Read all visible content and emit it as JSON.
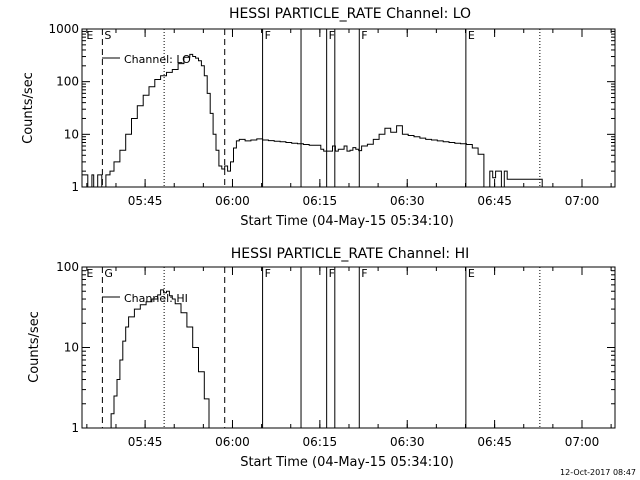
{
  "footer": {
    "timestamp": "12-Oct-2017 08:47"
  },
  "chart_data": [
    {
      "type": "line",
      "title": "HESSI PARTICLE_RATE Channel: LO",
      "xlabel": "Start Time (04-May-15 05:34:10)",
      "ylabel": "Counts/sec",
      "yscale": "log",
      "ylim": [
        1,
        1000
      ],
      "xlim_minutes": [
        0,
        91.5
      ],
      "y_ticks": [
        {
          "v": 1,
          "label": "1"
        },
        {
          "v": 10,
          "label": "10"
        },
        {
          "v": 100,
          "label": "100"
        },
        {
          "v": 1000,
          "label": "1000"
        }
      ],
      "x_ticks": [
        {
          "m": 10.833,
          "label": "05:45"
        },
        {
          "m": 25.833,
          "label": "06:00"
        },
        {
          "m": 40.833,
          "label": "06:15"
        },
        {
          "m": 55.833,
          "label": "06:30"
        },
        {
          "m": 70.833,
          "label": "06:45"
        },
        {
          "m": 85.833,
          "label": "07:00"
        }
      ],
      "legend": "Channel: LO",
      "flags": [
        {
          "m": 0.4,
          "label": "E",
          "style": "none"
        },
        {
          "m": 3.5,
          "label": "S",
          "style": "dashed"
        },
        {
          "m": 14.1,
          "label": "",
          "style": "dotted"
        },
        {
          "m": 24.5,
          "label": "",
          "style": "dashed"
        },
        {
          "m": 31.0,
          "label": "F",
          "style": "solid"
        },
        {
          "m": 37.6,
          "label": "",
          "style": "solid"
        },
        {
          "m": 42.0,
          "label": "F",
          "style": "solid"
        },
        {
          "m": 43.4,
          "label": "",
          "style": "solid"
        },
        {
          "m": 47.6,
          "label": "F",
          "style": "solid"
        },
        {
          "m": 65.9,
          "label": "E",
          "style": "solid"
        },
        {
          "m": 78.6,
          "label": "",
          "style": "dotted"
        }
      ],
      "series": [
        {
          "values": [
            [
              0,
              1.7
            ],
            [
              0.7,
              1.7
            ],
            [
              1.0,
              1.0
            ],
            [
              1.7,
              1.7
            ],
            [
              2.0,
              1.0
            ],
            [
              2.7,
              1.7
            ],
            [
              3.4,
              1.0
            ],
            [
              4.1,
              1.7
            ],
            [
              4.8,
              2.0
            ],
            [
              5.5,
              3.0
            ],
            [
              6.5,
              5.0
            ],
            [
              7.5,
              10.0
            ],
            [
              8.5,
              20.0
            ],
            [
              9.5,
              35.0
            ],
            [
              10.5,
              55.0
            ],
            [
              11.5,
              80.0
            ],
            [
              12.5,
              110.0
            ],
            [
              13.5,
              130.0
            ],
            [
              14.5,
              150.0
            ],
            [
              15.5,
              170.0
            ],
            [
              16.5,
              220.0
            ],
            [
              17.5,
              290.0
            ],
            [
              18.5,
              330.0
            ],
            [
              19.0,
              300.0
            ],
            [
              19.5,
              280.0
            ],
            [
              20.0,
              250.0
            ],
            [
              20.5,
              200.0
            ],
            [
              21.0,
              130.0
            ],
            [
              21.5,
              60.0
            ],
            [
              22.0,
              25.0
            ],
            [
              22.5,
              10.0
            ],
            [
              23.0,
              5.0
            ],
            [
              23.5,
              2.5
            ],
            [
              24.0,
              2.2
            ],
            [
              24.5,
              2.5
            ],
            [
              25.0,
              2.0
            ],
            [
              25.5,
              3.0
            ],
            [
              26.0,
              5.5
            ],
            [
              26.5,
              7.5
            ],
            [
              27.0,
              8.0
            ],
            [
              28.0,
              7.5
            ],
            [
              29.0,
              7.8
            ],
            [
              30.0,
              8.2
            ],
            [
              31.0,
              7.8
            ],
            [
              32.0,
              7.6
            ],
            [
              33.0,
              7.4
            ],
            [
              34.0,
              7.2
            ],
            [
              35.0,
              7.0
            ],
            [
              36.0,
              6.8
            ],
            [
              37.0,
              6.6
            ],
            [
              38.0,
              6.4
            ],
            [
              39.0,
              6.2
            ],
            [
              40.0,
              6.2
            ],
            [
              41.0,
              5.2
            ],
            [
              41.5,
              4.8
            ],
            [
              42.0,
              4.8
            ],
            [
              43.0,
              6.0
            ],
            [
              43.5,
              4.8
            ],
            [
              44.0,
              5.2
            ],
            [
              45.0,
              6.0
            ],
            [
              45.5,
              4.8
            ],
            [
              46.0,
              5.0
            ],
            [
              46.5,
              5.6
            ],
            [
              47.0,
              5.2
            ],
            [
              47.5,
              4.9
            ],
            [
              48.0,
              6.0
            ],
            [
              49.0,
              6.5
            ],
            [
              50.0,
              8.0
            ],
            [
              51.0,
              10.0
            ],
            [
              52.0,
              13.0
            ],
            [
              53.0,
              11.0
            ],
            [
              54.0,
              14.5
            ],
            [
              55.0,
              10.0
            ],
            [
              56.0,
              9.5
            ],
            [
              57.0,
              9.0
            ],
            [
              58.0,
              8.5
            ],
            [
              59.0,
              8.0
            ],
            [
              60.0,
              7.8
            ],
            [
              61.0,
              7.5
            ],
            [
              62.0,
              7.2
            ],
            [
              63.0,
              7.0
            ],
            [
              64.0,
              6.8
            ],
            [
              65.0,
              6.6
            ],
            [
              66.0,
              6.4
            ],
            [
              66.5,
              6.4
            ],
            [
              67.0,
              5.5
            ],
            [
              68.0,
              4.2
            ],
            [
              68.5,
              4.2
            ],
            [
              69.0,
              1.0
            ],
            [
              70.0,
              2.0
            ],
            [
              70.5,
              1.5
            ],
            [
              71.0,
              2.0
            ],
            [
              72.0,
              1.0
            ],
            [
              72.5,
              2.0
            ],
            [
              73.0,
              1.4
            ],
            [
              74.0,
              1.4
            ],
            [
              75.0,
              1.4
            ],
            [
              77.5,
              1.4
            ],
            [
              78.5,
              1.4
            ],
            [
              79.0,
              1.0
            ]
          ]
        }
      ]
    },
    {
      "type": "line",
      "title": "HESSI PARTICLE_RATE Channel: HI",
      "xlabel": "Start Time (04-May-15 05:34:10)",
      "ylabel": "Counts/sec",
      "yscale": "log",
      "ylim": [
        1,
        100
      ],
      "xlim_minutes": [
        0,
        91.5
      ],
      "y_ticks": [
        {
          "v": 1,
          "label": "1"
        },
        {
          "v": 10,
          "label": "10"
        },
        {
          "v": 100,
          "label": "100"
        }
      ],
      "x_ticks": [
        {
          "m": 10.833,
          "label": "05:45"
        },
        {
          "m": 25.833,
          "label": "06:00"
        },
        {
          "m": 40.833,
          "label": "06:15"
        },
        {
          "m": 55.833,
          "label": "06:30"
        },
        {
          "m": 70.833,
          "label": "06:45"
        },
        {
          "m": 85.833,
          "label": "07:00"
        }
      ],
      "legend": "Channel: HI",
      "flags": [
        {
          "m": 0.4,
          "label": "E",
          "style": "none"
        },
        {
          "m": 3.5,
          "label": "G",
          "style": "dashed"
        },
        {
          "m": 14.1,
          "label": "",
          "style": "dotted"
        },
        {
          "m": 24.5,
          "label": "",
          "style": "dashed"
        },
        {
          "m": 31.0,
          "label": "F",
          "style": "solid"
        },
        {
          "m": 37.6,
          "label": "",
          "style": "solid"
        },
        {
          "m": 42.0,
          "label": "F",
          "style": "solid"
        },
        {
          "m": 43.4,
          "label": "",
          "style": "solid"
        },
        {
          "m": 47.6,
          "label": "F",
          "style": "solid"
        },
        {
          "m": 65.9,
          "label": "E",
          "style": "solid"
        },
        {
          "m": 78.6,
          "label": "",
          "style": "dotted"
        }
      ],
      "series": [
        {
          "values": [
            [
              4.4,
              1.0
            ],
            [
              5.0,
              1.5
            ],
            [
              5.5,
              2.5
            ],
            [
              6.0,
              4.0
            ],
            [
              6.5,
              7.0
            ],
            [
              7.0,
              12.0
            ],
            [
              7.5,
              18.0
            ],
            [
              8.0,
              24.0
            ],
            [
              9.0,
              30.0
            ],
            [
              10.0,
              34.0
            ],
            [
              11.0,
              37.0
            ],
            [
              12.0,
              40.0
            ],
            [
              13.0,
              45.0
            ],
            [
              13.5,
              52.0
            ],
            [
              14.0,
              48.0
            ],
            [
              14.5,
              50.0
            ],
            [
              15.0,
              44.0
            ],
            [
              15.5,
              40.0
            ],
            [
              16.0,
              35.0
            ],
            [
              17.0,
              27.0
            ],
            [
              18.0,
              18.0
            ],
            [
              19.0,
              10.0
            ],
            [
              20.0,
              5.0
            ],
            [
              21.0,
              2.3
            ],
            [
              21.8,
              1.0
            ]
          ]
        }
      ]
    }
  ]
}
